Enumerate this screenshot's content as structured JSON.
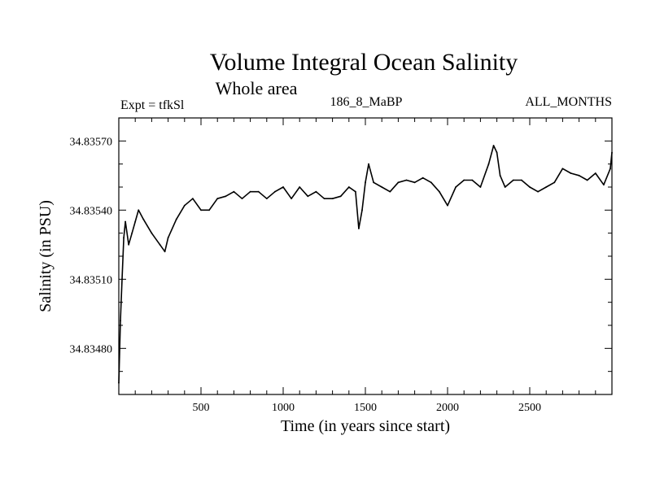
{
  "chart_data": {
    "type": "line",
    "title": "Volume Integral Ocean Salinity",
    "subtitle": "Whole area",
    "header_left": "Expt = tfkSl",
    "header_center": "186_8_MaBP",
    "header_right": "ALL_MONTHS",
    "xlabel": "Time (in years since start)",
    "ylabel": "Salinity (in PSU)",
    "xlim": [
      0,
      3000
    ],
    "ylim": [
      34.8346,
      34.8358
    ],
    "x_major_ticks": [
      500,
      1000,
      1500,
      2000,
      2500
    ],
    "x_tick_labels": [
      "500",
      "1000",
      "1500",
      "2000",
      "2500"
    ],
    "y_major_ticks": [
      34.8348,
      34.8351,
      34.8354,
      34.8357
    ],
    "y_tick_labels": [
      "34.83480",
      "34.83510",
      "34.83540",
      "34.83570"
    ],
    "line_color": "#000000",
    "series": [
      {
        "name": "salinity",
        "x": [
          0,
          10,
          20,
          30,
          40,
          60,
          80,
          100,
          120,
          150,
          200,
          250,
          280,
          300,
          350,
          400,
          450,
          500,
          550,
          600,
          650,
          700,
          750,
          800,
          850,
          900,
          950,
          1000,
          1050,
          1100,
          1150,
          1200,
          1250,
          1300,
          1350,
          1400,
          1440,
          1460,
          1480,
          1500,
          1520,
          1550,
          1600,
          1650,
          1700,
          1750,
          1800,
          1850,
          1900,
          1950,
          2000,
          2050,
          2100,
          2150,
          2200,
          2250,
          2280,
          2300,
          2320,
          2350,
          2400,
          2450,
          2500,
          2550,
          2600,
          2650,
          2700,
          2750,
          2800,
          2850,
          2900,
          2950,
          2990,
          3000
        ],
        "values": [
          34.83465,
          34.83492,
          34.8351,
          34.83528,
          34.83535,
          34.83525,
          34.8353,
          34.83535,
          34.8354,
          34.83536,
          34.8353,
          34.83525,
          34.83522,
          34.83528,
          34.83536,
          34.83542,
          34.83545,
          34.8354,
          34.8354,
          34.83545,
          34.83546,
          34.83548,
          34.83545,
          34.83548,
          34.83548,
          34.83545,
          34.83548,
          34.8355,
          34.83545,
          34.8355,
          34.83546,
          34.83548,
          34.83545,
          34.83545,
          34.83546,
          34.8355,
          34.83548,
          34.83532,
          34.8354,
          34.83552,
          34.8356,
          34.83552,
          34.8355,
          34.83548,
          34.83552,
          34.83553,
          34.83552,
          34.83554,
          34.83552,
          34.83548,
          34.83542,
          34.8355,
          34.83553,
          34.83553,
          34.8355,
          34.8356,
          34.83568,
          34.83565,
          34.83555,
          34.8355,
          34.83553,
          34.83553,
          34.8355,
          34.83548,
          34.8355,
          34.83552,
          34.83558,
          34.83556,
          34.83555,
          34.83553,
          34.83556,
          34.83551,
          34.83558,
          34.83565
        ]
      }
    ]
  }
}
